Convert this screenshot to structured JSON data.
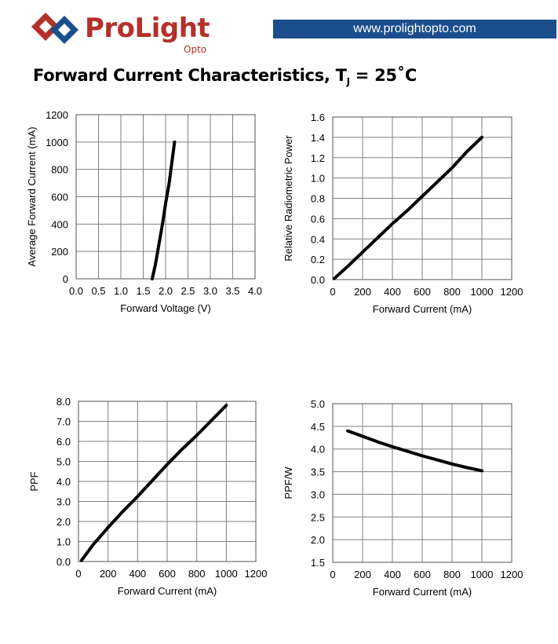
{
  "header": {
    "brand": "ProLight",
    "brand_sub": "Opto",
    "url": "www.prolightopto.com",
    "brand_color": "#b5302a",
    "bar_color": "#1b4e8c",
    "logo_icon": "diamond-logo-icon"
  },
  "page_title": {
    "main": "Forward Current Characteristics, T",
    "sub": "J",
    "tail": " = 25˚C"
  },
  "chart_data": [
    {
      "type": "line",
      "title": "",
      "xlabel": "Forward Voltage (V)",
      "ylabel": "Average Forward Current (mA)",
      "xlim": [
        0,
        4
      ],
      "ylim": [
        0,
        1200
      ],
      "xticks": [
        0,
        0.5,
        1,
        1.5,
        2,
        2.5,
        3,
        3.5,
        4
      ],
      "yticks": [
        0,
        200,
        400,
        600,
        800,
        1000,
        1200
      ],
      "xdec": 1,
      "ydec": 0,
      "grid": true,
      "series": [
        {
          "x": [
            1.7,
            1.77,
            1.85,
            1.93,
            2.0,
            2.08,
            2.14,
            2.2
          ],
          "y": [
            0,
            100,
            250,
            400,
            550,
            700,
            850,
            1000
          ]
        }
      ]
    },
    {
      "type": "line",
      "title": "",
      "xlabel": "Forward Current (mA)",
      "ylabel": "Relative Radiometric Power",
      "xlim": [
        0,
        1200
      ],
      "ylim": [
        0,
        1.6
      ],
      "xticks": [
        0,
        200,
        400,
        600,
        800,
        1000,
        1200
      ],
      "yticks": [
        0,
        0.2,
        0.4,
        0.6,
        0.8,
        1.0,
        1.2,
        1.4,
        1.6
      ],
      "xdec": 0,
      "ydec": 1,
      "grid": true,
      "series": [
        {
          "x": [
            10,
            100,
            200,
            300,
            400,
            500,
            600,
            700,
            800,
            900,
            1000
          ],
          "y": [
            0.01,
            0.13,
            0.27,
            0.41,
            0.55,
            0.68,
            0.82,
            0.96,
            1.1,
            1.26,
            1.4
          ]
        }
      ]
    },
    {
      "type": "line",
      "title": "",
      "xlabel": "Forward Current (mA)",
      "ylabel": "PPF",
      "xlim": [
        0,
        1200
      ],
      "ylim": [
        0,
        8
      ],
      "xticks": [
        0,
        200,
        400,
        600,
        800,
        1000,
        1200
      ],
      "yticks": [
        0,
        1,
        2,
        3,
        4,
        5,
        6,
        7,
        8
      ],
      "xdec": 0,
      "ydec": 1,
      "grid": true,
      "series": [
        {
          "x": [
            20,
            100,
            200,
            300,
            400,
            500,
            600,
            700,
            800,
            900,
            1000
          ],
          "y": [
            0.05,
            0.85,
            1.7,
            2.5,
            3.25,
            4.05,
            4.85,
            5.6,
            6.3,
            7.05,
            7.8
          ]
        }
      ]
    },
    {
      "type": "line",
      "title": "",
      "xlabel": "Forward Current (mA)",
      "ylabel": "PPF/W",
      "xlim": [
        0,
        1200
      ],
      "ylim": [
        1.5,
        5
      ],
      "xticks": [
        0,
        200,
        400,
        600,
        800,
        1000,
        1200
      ],
      "yticks": [
        1.5,
        2,
        2.5,
        3,
        3.5,
        4,
        4.5,
        5
      ],
      "xdec": 0,
      "ydec": 1,
      "grid": true,
      "series": [
        {
          "x": [
            100,
            200,
            300,
            400,
            500,
            600,
            700,
            800,
            900,
            1000
          ],
          "y": [
            4.4,
            4.28,
            4.16,
            4.05,
            3.95,
            3.85,
            3.76,
            3.67,
            3.59,
            3.52
          ]
        }
      ]
    }
  ]
}
